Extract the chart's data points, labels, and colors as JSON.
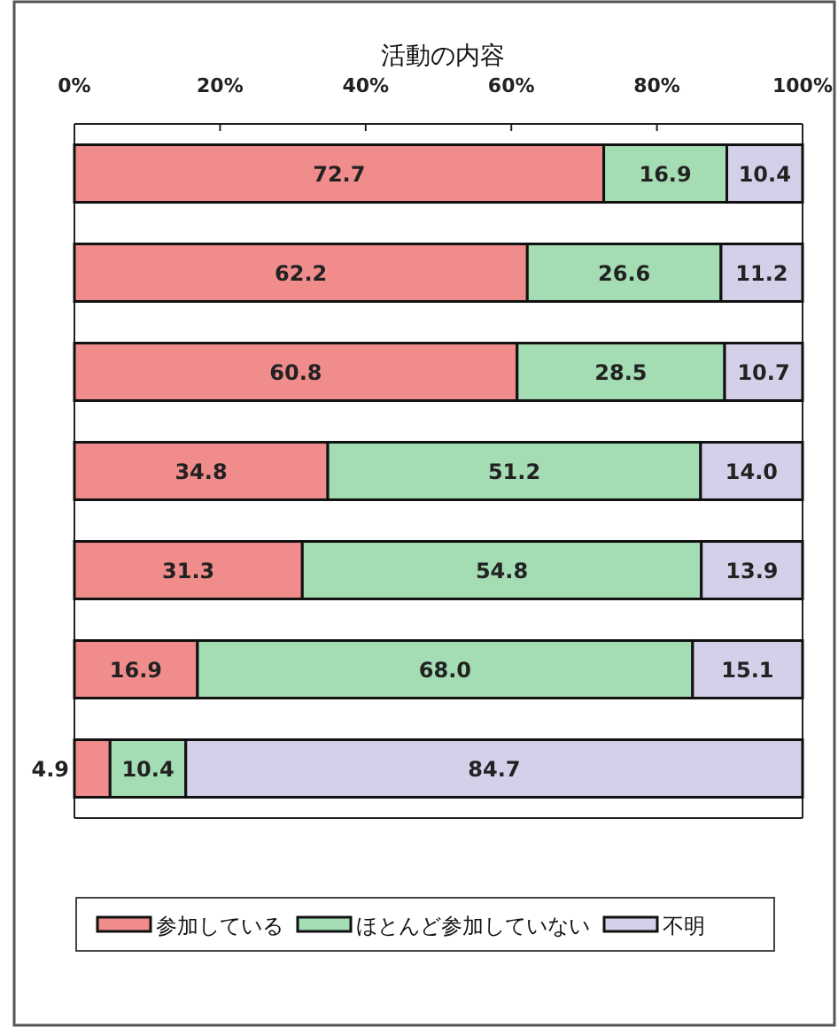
{
  "chart_data": {
    "type": "bar",
    "orientation": "horizontal",
    "stacked": true,
    "title": "活動の内容",
    "categories": [
      null,
      null,
      null,
      null,
      null,
      null,
      null
    ],
    "series": [
      {
        "name": "参加している",
        "color": "#f08c8c",
        "values": [
          72.7,
          62.2,
          60.8,
          34.8,
          31.3,
          16.9,
          4.9
        ],
        "value_labels": [
          "72.7",
          "62.2",
          "60.8",
          "34.8",
          "31.3",
          "16.9",
          "4.9"
        ]
      },
      {
        "name": "ほとんど参加していない",
        "color": "#a4dcb4",
        "values": [
          16.9,
          26.6,
          28.5,
          51.2,
          54.8,
          68.0,
          10.4
        ],
        "value_labels": [
          "16.9",
          "26.6",
          "28.5",
          "51.2",
          "54.8",
          "68.0",
          "10.4"
        ]
      },
      {
        "name": "不明",
        "color": "#d4d0ea",
        "values": [
          10.4,
          11.2,
          10.7,
          14.0,
          13.9,
          15.1,
          84.7
        ],
        "value_labels": [
          "10.4",
          "11.2",
          "10.7",
          "14.0",
          "13.9",
          "15.1",
          "84.7"
        ]
      }
    ],
    "xlim": [
      0,
      100
    ],
    "xticks": [
      {
        "value": 0,
        "label": "0%"
      },
      {
        "value": 20,
        "label": "20%"
      },
      {
        "value": 40,
        "label": "40%"
      },
      {
        "value": 60,
        "label": "60%"
      },
      {
        "value": 80,
        "label": "80%"
      },
      {
        "value": 100,
        "label": "100%"
      }
    ],
    "legend": "bottom",
    "grid": false
  }
}
